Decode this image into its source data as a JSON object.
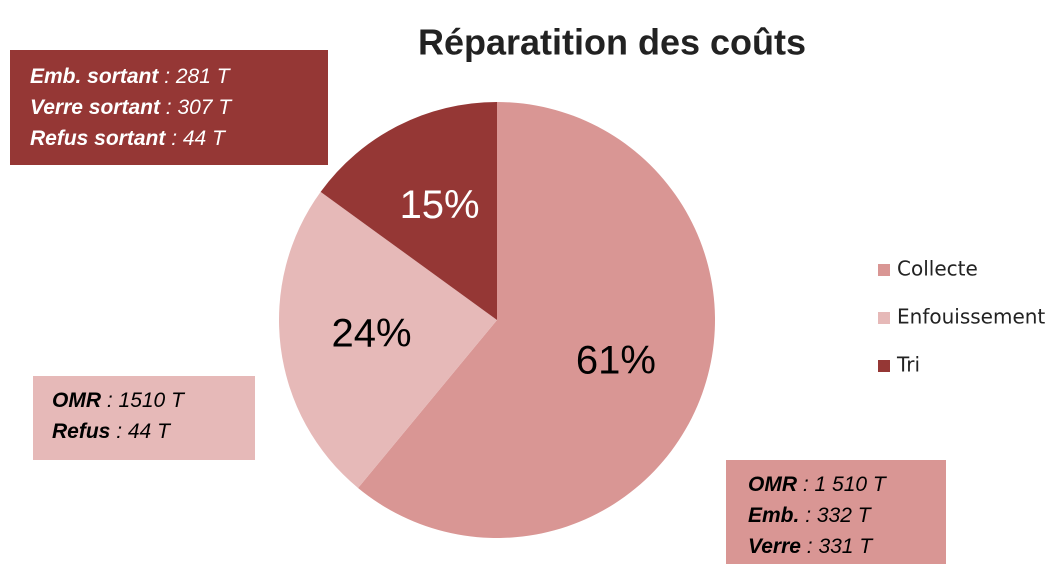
{
  "chart_data": {
    "type": "pie",
    "title": "Réparatition des coûts",
    "categories": [
      "Collecte",
      "Enfouissement",
      "Tri"
    ],
    "values": [
      61,
      24,
      15
    ],
    "value_labels": [
      "61%",
      "24%",
      "15%"
    ],
    "colors": [
      "#d99694",
      "#e6b9b8",
      "#953735"
    ],
    "legend": "right",
    "annotations": [
      {
        "color": "#953735",
        "lines": [
          {
            "label": "Emb. sortant",
            "value": ": 281 T"
          },
          {
            "label": "Verre sortant",
            "value": ": 307 T"
          },
          {
            "label": "Refus sortant",
            "value": ": 44 T"
          }
        ]
      },
      {
        "color": "#e6b9b8",
        "lines": [
          {
            "label": "OMR",
            "value": ": 1510 T"
          },
          {
            "label": "Refus",
            "value": ": 44 T"
          }
        ]
      },
      {
        "color": "#d99694",
        "lines": [
          {
            "label": "OMR",
            "value": ": 1 510 T"
          },
          {
            "label": "Emb.",
            "value": ": 332 T"
          },
          {
            "label": "Verre",
            "value": ": 331 T"
          }
        ]
      }
    ]
  }
}
